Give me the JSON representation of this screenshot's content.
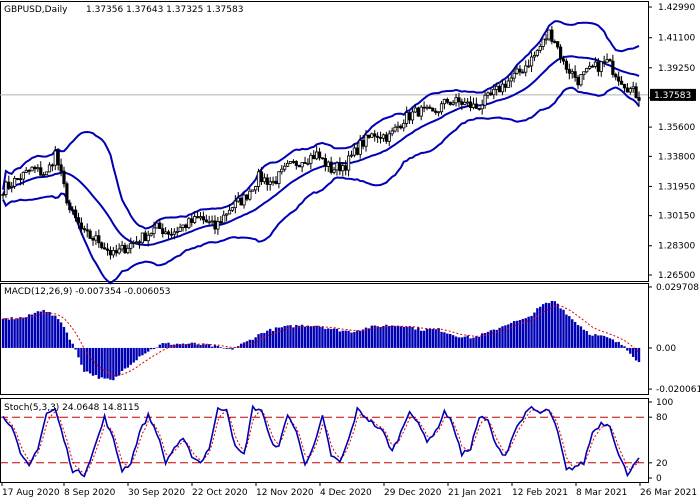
{
  "header": {
    "symbol": "GBPUSD,Daily",
    "ohlc": "1.37356 1.37643 1.37325 1.37583"
  },
  "colors": {
    "bar": "#0000b4",
    "band": "#0000b4",
    "signal": "#e00000",
    "level": "#cc0000",
    "grid": "#b0b0b0",
    "price_label_bg": "#000000"
  },
  "x_labels": [
    "17 Aug 2020",
    "8 Sep 2020",
    "30 Sep 2020",
    "22 Oct 2020",
    "12 Nov 2020",
    "4 Dec 2020",
    "29 Dec 2020",
    "21 Jan 2021",
    "12 Feb 2021",
    "8 Mar 2021",
    "26 Mar 2021"
  ],
  "chart_data": [
    {
      "type": "candlestick",
      "title": "GBPUSD,Daily",
      "indicator": "Bollinger Bands",
      "y_ticks": [
        "1.42990",
        "1.41100",
        "1.39250",
        "1.37400",
        "1.35600",
        "1.33800",
        "1.31950",
        "1.30150",
        "1.28300",
        "1.26500"
      ],
      "ylim": [
        1.265,
        1.4299
      ],
      "current_price": 1.37583,
      "current_price_label": "1.37583",
      "x_range": [
        "17 Aug 2020",
        "26 Mar 2021"
      ],
      "approx_close_path": [
        [
          0,
          1.318
        ],
        [
          10,
          1.33
        ],
        [
          15,
          1.327
        ],
        [
          18,
          1.34
        ],
        [
          23,
          1.305
        ],
        [
          28,
          1.29
        ],
        [
          33,
          1.286
        ],
        [
          38,
          1.277
        ],
        [
          43,
          1.283
        ],
        [
          48,
          1.288
        ],
        [
          53,
          1.294
        ],
        [
          58,
          1.291
        ],
        [
          63,
          1.296
        ],
        [
          68,
          1.3
        ],
        [
          73,
          1.294
        ],
        [
          78,
          1.306
        ],
        [
          83,
          1.312
        ],
        [
          88,
          1.325
        ],
        [
          93,
          1.322
        ],
        [
          98,
          1.331
        ],
        [
          103,
          1.336
        ],
        [
          108,
          1.339
        ],
        [
          113,
          1.33
        ],
        [
          118,
          1.333
        ],
        [
          123,
          1.345
        ],
        [
          128,
          1.352
        ],
        [
          133,
          1.35
        ],
        [
          138,
          1.361
        ],
        [
          143,
          1.366
        ],
        [
          148,
          1.364
        ],
        [
          153,
          1.372
        ],
        [
          158,
          1.371
        ],
        [
          163,
          1.368
        ],
        [
          168,
          1.375
        ],
        [
          173,
          1.383
        ],
        [
          178,
          1.39
        ],
        [
          183,
          1.4
        ],
        [
          188,
          1.414
        ],
        [
          190,
          1.41
        ],
        [
          193,
          1.395
        ],
        [
          198,
          1.385
        ],
        [
          203,
          1.392
        ],
        [
          208,
          1.396
        ],
        [
          213,
          1.385
        ],
        [
          216,
          1.379
        ],
        [
          219,
          1.375
        ]
      ]
    },
    {
      "type": "histogram",
      "title": "MACD(12,26,9) -0.007354 -0.006053",
      "y_ticks": [
        "0.029708",
        "0.00",
        "-0.020061"
      ],
      "ylim": [
        -0.0205,
        0.0297
      ],
      "values": {
        "macd": -0.007354,
        "signal": -0.006053
      },
      "approx_path": [
        [
          0,
          0.014
        ],
        [
          8,
          0.015
        ],
        [
          14,
          0.019
        ],
        [
          20,
          0.013
        ],
        [
          24,
          0.002
        ],
        [
          28,
          -0.011
        ],
        [
          34,
          -0.015
        ],
        [
          38,
          -0.016
        ],
        [
          42,
          -0.01
        ],
        [
          48,
          -0.003
        ],
        [
          55,
          0.002
        ],
        [
          60,
          0.002
        ],
        [
          66,
          0.002
        ],
        [
          72,
          0.001
        ],
        [
          78,
          -0.001
        ],
        [
          84,
          0.003
        ],
        [
          90,
          0.008
        ],
        [
          96,
          0.01
        ],
        [
          102,
          0.011
        ],
        [
          108,
          0.011
        ],
        [
          114,
          0.009
        ],
        [
          120,
          0.008
        ],
        [
          126,
          0.01
        ],
        [
          132,
          0.011
        ],
        [
          138,
          0.011
        ],
        [
          144,
          0.009
        ],
        [
          150,
          0.009
        ],
        [
          156,
          0.006
        ],
        [
          162,
          0.005
        ],
        [
          168,
          0.008
        ],
        [
          174,
          0.012
        ],
        [
          180,
          0.014
        ],
        [
          186,
          0.021
        ],
        [
          190,
          0.023
        ],
        [
          196,
          0.014
        ],
        [
          202,
          0.007
        ],
        [
          208,
          0.005
        ],
        [
          214,
          0.001
        ],
        [
          219,
          -0.007
        ]
      ]
    },
    {
      "type": "line",
      "title": "Stoch(5,3,3) 24.0648 14.8115",
      "y_ticks": [
        "100",
        "80",
        "20",
        "0"
      ],
      "ylim": [
        0,
        100
      ],
      "levels": [
        80,
        20
      ],
      "values": {
        "main": 24.0648,
        "signal": 14.8115
      },
      "approx_path": [
        [
          0,
          80
        ],
        [
          3,
          70
        ],
        [
          6,
          30
        ],
        [
          9,
          15
        ],
        [
          12,
          40
        ],
        [
          15,
          85
        ],
        [
          18,
          90
        ],
        [
          21,
          50
        ],
        [
          24,
          10
        ],
        [
          28,
          5
        ],
        [
          32,
          45
        ],
        [
          35,
          80
        ],
        [
          38,
          50
        ],
        [
          41,
          10
        ],
        [
          44,
          20
        ],
        [
          47,
          60
        ],
        [
          50,
          82
        ],
        [
          53,
          60
        ],
        [
          56,
          20
        ],
        [
          59,
          40
        ],
        [
          62,
          50
        ],
        [
          65,
          30
        ],
        [
          68,
          20
        ],
        [
          71,
          40
        ],
        [
          74,
          90
        ],
        [
          77,
          92
        ],
        [
          80,
          40
        ],
        [
          83,
          30
        ],
        [
          86,
          92
        ],
        [
          89,
          90
        ],
        [
          92,
          50
        ],
        [
          95,
          40
        ],
        [
          98,
          85
        ],
        [
          101,
          60
        ],
        [
          104,
          20
        ],
        [
          107,
          40
        ],
        [
          110,
          80
        ],
        [
          113,
          30
        ],
        [
          116,
          20
        ],
        [
          119,
          50
        ],
        [
          122,
          90
        ],
        [
          125,
          80
        ],
        [
          128,
          70
        ],
        [
          131,
          60
        ],
        [
          134,
          35
        ],
        [
          137,
          60
        ],
        [
          140,
          90
        ],
        [
          143,
          70
        ],
        [
          146,
          50
        ],
        [
          149,
          60
        ],
        [
          152,
          88
        ],
        [
          155,
          70
        ],
        [
          158,
          30
        ],
        [
          161,
          40
        ],
        [
          164,
          80
        ],
        [
          167,
          75
        ],
        [
          170,
          40
        ],
        [
          173,
          30
        ],
        [
          176,
          60
        ],
        [
          179,
          80
        ],
        [
          182,
          92
        ],
        [
          185,
          85
        ],
        [
          188,
          90
        ],
        [
          191,
          60
        ],
        [
          194,
          10
        ],
        [
          197,
          15
        ],
        [
          200,
          20
        ],
        [
          203,
          60
        ],
        [
          206,
          72
        ],
        [
          209,
          70
        ],
        [
          212,
          30
        ],
        [
          215,
          5
        ],
        [
          218,
          24
        ]
      ]
    }
  ]
}
